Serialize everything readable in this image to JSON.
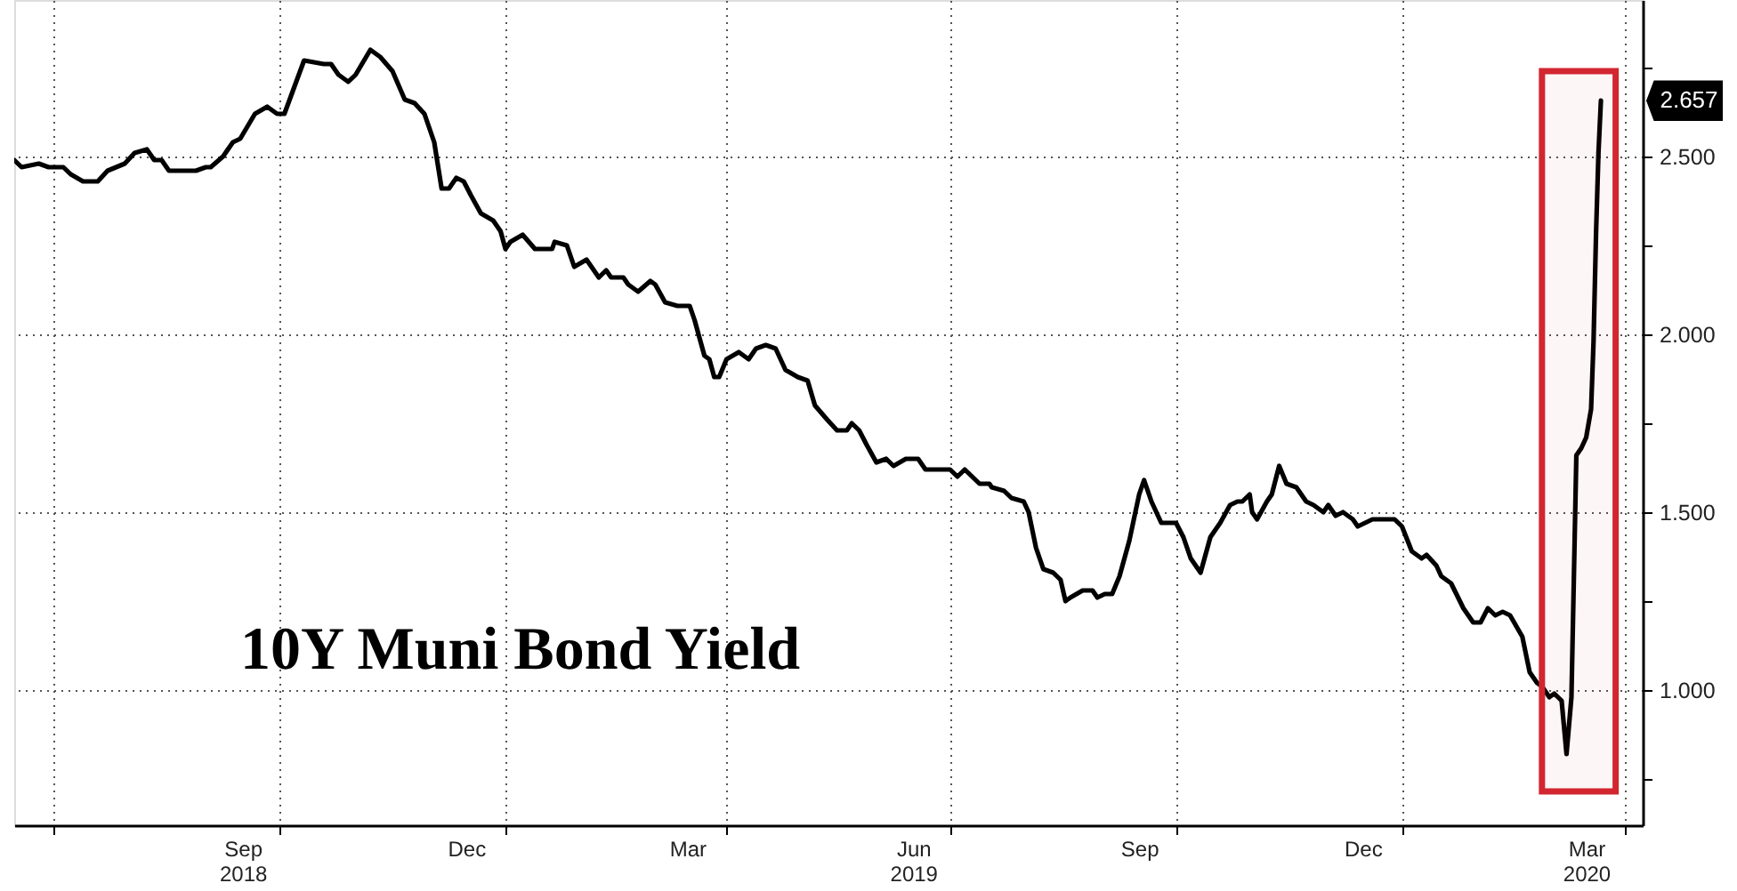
{
  "chart_data": {
    "type": "line",
    "title": "10Y Muni Bond Yield",
    "x": [
      "2018-06-15",
      "2018-06-18",
      "2018-06-25",
      "2018-06-29",
      "2018-07-05",
      "2018-07-08",
      "2018-07-13",
      "2018-07-19",
      "2018-07-23",
      "2018-07-30",
      "2018-08-03",
      "2018-08-08",
      "2018-08-11",
      "2018-08-14",
      "2018-08-17",
      "2018-08-22",
      "2018-08-28",
      "2018-09-01",
      "2018-09-03",
      "2018-09-08",
      "2018-09-12",
      "2018-09-15",
      "2018-09-21",
      "2018-09-26",
      "2018-09-30",
      "2018-10-03",
      "2018-10-11",
      "2018-10-19",
      "2018-10-22",
      "2018-10-25",
      "2018-10-29",
      "2018-11-01",
      "2018-11-07",
      "2018-11-11",
      "2018-11-16",
      "2018-11-21",
      "2018-11-25",
      "2018-11-29",
      "2018-12-03",
      "2018-12-06",
      "2018-12-09",
      "2018-12-12",
      "2018-12-15",
      "2018-12-18",
      "2018-12-22",
      "2018-12-27",
      "2018-12-30",
      "2019-01-01",
      "2019-01-03",
      "2019-01-08",
      "2019-01-13",
      "2019-01-20",
      "2019-01-21",
      "2019-01-26",
      "2019-01-29",
      "2019-02-03",
      "2019-02-08",
      "2019-02-11",
      "2019-02-13",
      "2019-02-18",
      "2019-02-20",
      "2019-02-24",
      "2019-03-01",
      "2019-03-03",
      "2019-03-07",
      "2019-03-12",
      "2019-03-17",
      "2019-03-19",
      "2019-03-23",
      "2019-03-25",
      "2019-03-27",
      "2019-03-29",
      "2019-04-01",
      "2019-04-06",
      "2019-04-10",
      "2019-04-13",
      "2019-04-17",
      "2019-04-21",
      "2019-04-25",
      "2019-04-30",
      "2019-05-04",
      "2019-05-07",
      "2019-05-12",
      "2019-05-16",
      "2019-05-20",
      "2019-05-22",
      "2019-05-25",
      "2019-05-28",
      "2019-06-01",
      "2019-06-05",
      "2019-06-08",
      "2019-06-13",
      "2019-06-18",
      "2019-06-21",
      "2019-06-26",
      "2019-07-01",
      "2019-07-04",
      "2019-07-07",
      "2019-07-13",
      "2019-07-17",
      "2019-07-18",
      "2019-07-23",
      "2019-07-26",
      "2019-07-31",
      "2019-08-02",
      "2019-08-05",
      "2019-08-08",
      "2019-08-12",
      "2019-08-15",
      "2019-08-17",
      "2019-08-19",
      "2019-08-24",
      "2019-08-28",
      "2019-08-30",
      "2019-09-02",
      "2019-09-05",
      "2019-09-08",
      "2019-09-12",
      "2019-09-16",
      "2019-09-18",
      "2019-09-21",
      "2019-09-25",
      "2019-10-01",
      "2019-10-04",
      "2019-10-07",
      "2019-10-11",
      "2019-10-15",
      "2019-10-19",
      "2019-10-23",
      "2019-10-26",
      "2019-10-28",
      "2019-10-31",
      "2019-11-01",
      "2019-11-03",
      "2019-11-07",
      "2019-11-09",
      "2019-11-12",
      "2019-11-15",
      "2019-11-19",
      "2019-11-23",
      "2019-11-26",
      "2019-11-30",
      "2019-12-02",
      "2019-12-05",
      "2019-12-08",
      "2019-12-12",
      "2019-12-14",
      "2019-12-17",
      "2019-12-20",
      "2019-12-29",
      "2020-01-01",
      "2020-01-05",
      "2020-01-09",
      "2020-01-11",
      "2020-01-15",
      "2020-01-17",
      "2020-01-21",
      "2020-01-26",
      "2020-01-30",
      "2020-02-02",
      "2020-02-05",
      "2020-02-08",
      "2020-02-11",
      "2020-02-14",
      "2020-02-19",
      "2020-02-22",
      "2020-02-25",
      "2020-02-27",
      "2020-03-01",
      "2020-03-03",
      "2020-03-06",
      "2020-03-08",
      "2020-03-10",
      "2020-03-12",
      "2020-03-13",
      "2020-03-14",
      "2020-03-16",
      "2020-03-18",
      "2020-03-19",
      "2020-03-20",
      "2020-03-21",
      "2020-03-22"
    ],
    "series": [
      {
        "color": "#000000",
        "values": [
          2.49,
          2.47,
          2.48,
          2.47,
          2.47,
          2.45,
          2.43,
          2.43,
          2.46,
          2.48,
          2.51,
          2.52,
          2.49,
          2.49,
          2.46,
          2.46,
          2.46,
          2.47,
          2.47,
          2.5,
          2.54,
          2.55,
          2.62,
          2.64,
          2.62,
          2.62,
          2.77,
          2.76,
          2.76,
          2.73,
          2.71,
          2.73,
          2.8,
          2.78,
          2.74,
          2.66,
          2.65,
          2.62,
          2.54,
          2.41,
          2.41,
          2.44,
          2.43,
          2.39,
          2.34,
          2.32,
          2.29,
          2.24,
          2.26,
          2.28,
          2.24,
          2.24,
          2.26,
          2.25,
          2.19,
          2.21,
          2.16,
          2.18,
          2.16,
          2.16,
          2.14,
          2.12,
          2.15,
          2.14,
          2.09,
          2.08,
          2.08,
          2.04,
          1.94,
          1.93,
          1.88,
          1.88,
          1.93,
          1.95,
          1.93,
          1.96,
          1.97,
          1.96,
          1.9,
          1.88,
          1.87,
          1.8,
          1.76,
          1.73,
          1.73,
          1.75,
          1.73,
          1.69,
          1.64,
          1.65,
          1.63,
          1.65,
          1.65,
          1.62,
          1.62,
          1.62,
          1.6,
          1.62,
          1.58,
          1.58,
          1.57,
          1.56,
          1.54,
          1.53,
          1.5,
          1.4,
          1.34,
          1.33,
          1.31,
          1.25,
          1.26,
          1.28,
          1.28,
          1.26,
          1.27,
          1.27,
          1.32,
          1.42,
          1.55,
          1.59,
          1.53,
          1.47,
          1.47,
          1.43,
          1.37,
          1.33,
          1.43,
          1.47,
          1.52,
          1.53,
          1.53,
          1.55,
          1.5,
          1.48,
          1.53,
          1.55,
          1.63,
          1.58,
          1.57,
          1.53,
          1.52,
          1.5,
          1.52,
          1.49,
          1.5,
          1.48,
          1.46,
          1.47,
          1.48,
          1.48,
          1.46,
          1.39,
          1.37,
          1.38,
          1.35,
          1.32,
          1.3,
          1.23,
          1.19,
          1.19,
          1.23,
          1.21,
          1.22,
          1.21,
          1.15,
          1.05,
          1.02,
          1.01,
          0.98,
          0.99,
          0.97,
          0.82,
          0.98,
          1.66,
          1.67,
          1.68,
          1.71,
          1.79,
          1.98,
          2.28,
          2.51,
          2.657
        ]
      }
    ],
    "xlim": [
      "2018-06-15",
      "2020-04-08"
    ],
    "xticks": [
      {
        "value": "2018-07-01",
        "label": null
      },
      {
        "value": "2018-09-16",
        "label": "Sep\n2018"
      },
      {
        "value": "2018-10-01",
        "label": null
      },
      {
        "value": "2018-12-16",
        "label": "Dec"
      },
      {
        "value": "2019-01-01",
        "label": null
      },
      {
        "value": "2019-03-16",
        "label": "Mar"
      },
      {
        "value": "2019-04-01",
        "label": null
      },
      {
        "value": "2019-06-16",
        "label": "Jun\n2019"
      },
      {
        "value": "2019-07-01",
        "label": null
      },
      {
        "value": "2019-09-16",
        "label": "Sep"
      },
      {
        "value": "2019-10-01",
        "label": null
      },
      {
        "value": "2019-12-16",
        "label": "Dec"
      },
      {
        "value": "2020-01-01",
        "label": null
      },
      {
        "value": "2020-03-16",
        "label": "Mar\n2020"
      },
      {
        "value": "2020-04-01",
        "label": null
      }
    ],
    "ylim": [
      0.62,
      2.94
    ],
    "yticks": [
      {
        "value": 0.75,
        "label": null
      },
      {
        "value": 1,
        "label": "1.000"
      },
      {
        "value": 1.25,
        "label": null
      },
      {
        "value": 1.5,
        "label": "1.500"
      },
      {
        "value": 1.75,
        "label": null
      },
      {
        "value": 2,
        "label": "2.000"
      },
      {
        "value": 2.25,
        "label": null
      },
      {
        "value": 2.5,
        "label": "2.500"
      },
      {
        "value": 2.75,
        "label": null
      }
    ],
    "annotations": [
      "2.657"
    ],
    "bands": [
      {
        "axis": "x",
        "from": "2020-02-27",
        "to": "2020-03-28",
        "color": "#d22630"
      }
    ],
    "grid": true,
    "line_style": "solid"
  }
}
